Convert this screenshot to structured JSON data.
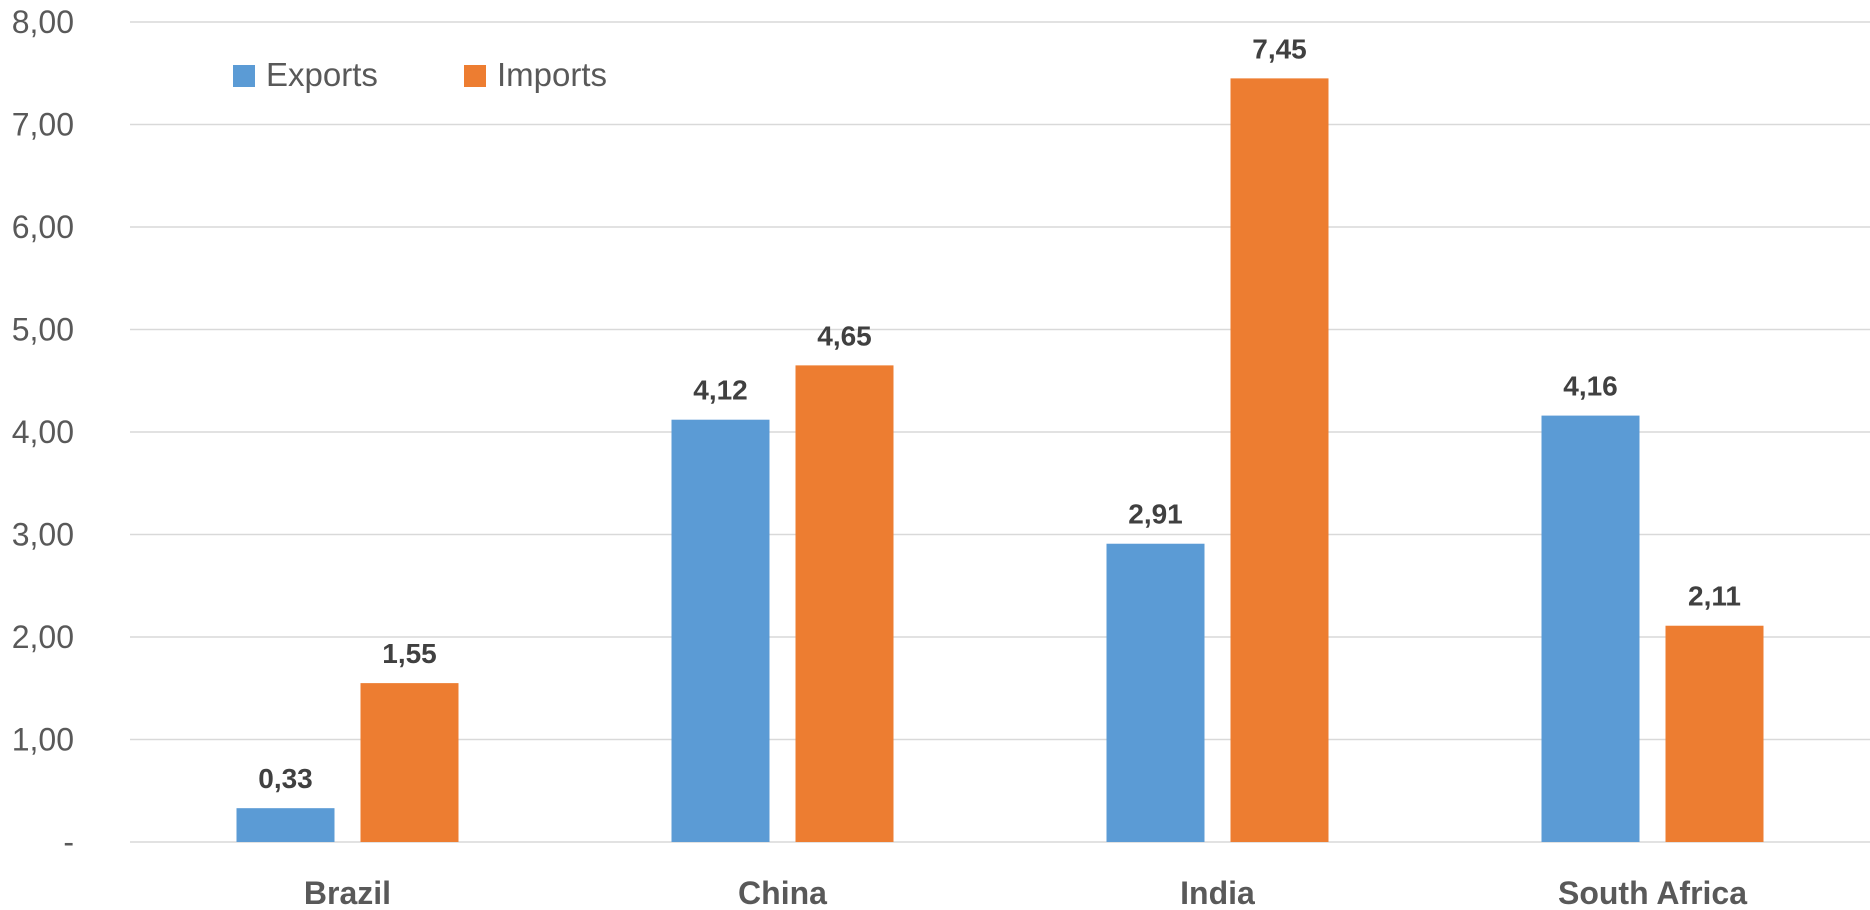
{
  "chart_data": {
    "type": "bar",
    "categories": [
      "Brazil",
      "China",
      "India",
      "South Africa"
    ],
    "series": [
      {
        "name": "Exports",
        "values": [
          0.33,
          4.12,
          2.91,
          4.16
        ],
        "labels": [
          "0,33",
          "4,12",
          "2,91",
          "4,16"
        ],
        "color": "#5B9BD5"
      },
      {
        "name": "Imports",
        "values": [
          1.55,
          4.65,
          7.45,
          2.11
        ],
        "labels": [
          "1,55",
          "4,65",
          "7,45",
          "2,11"
        ],
        "color": "#ED7D31"
      }
    ],
    "ylim": [
      0,
      8
    ],
    "yticks": [
      0,
      1,
      2,
      3,
      4,
      5,
      6,
      7,
      8
    ],
    "ytick_labels": [
      "-",
      "1,00",
      "2,00",
      "3,00",
      "4,00",
      "5,00",
      "6,00",
      "7,00",
      "8,00"
    ],
    "grid": true,
    "legend_position": "top-left",
    "title": "",
    "xlabel": "",
    "ylabel": ""
  }
}
